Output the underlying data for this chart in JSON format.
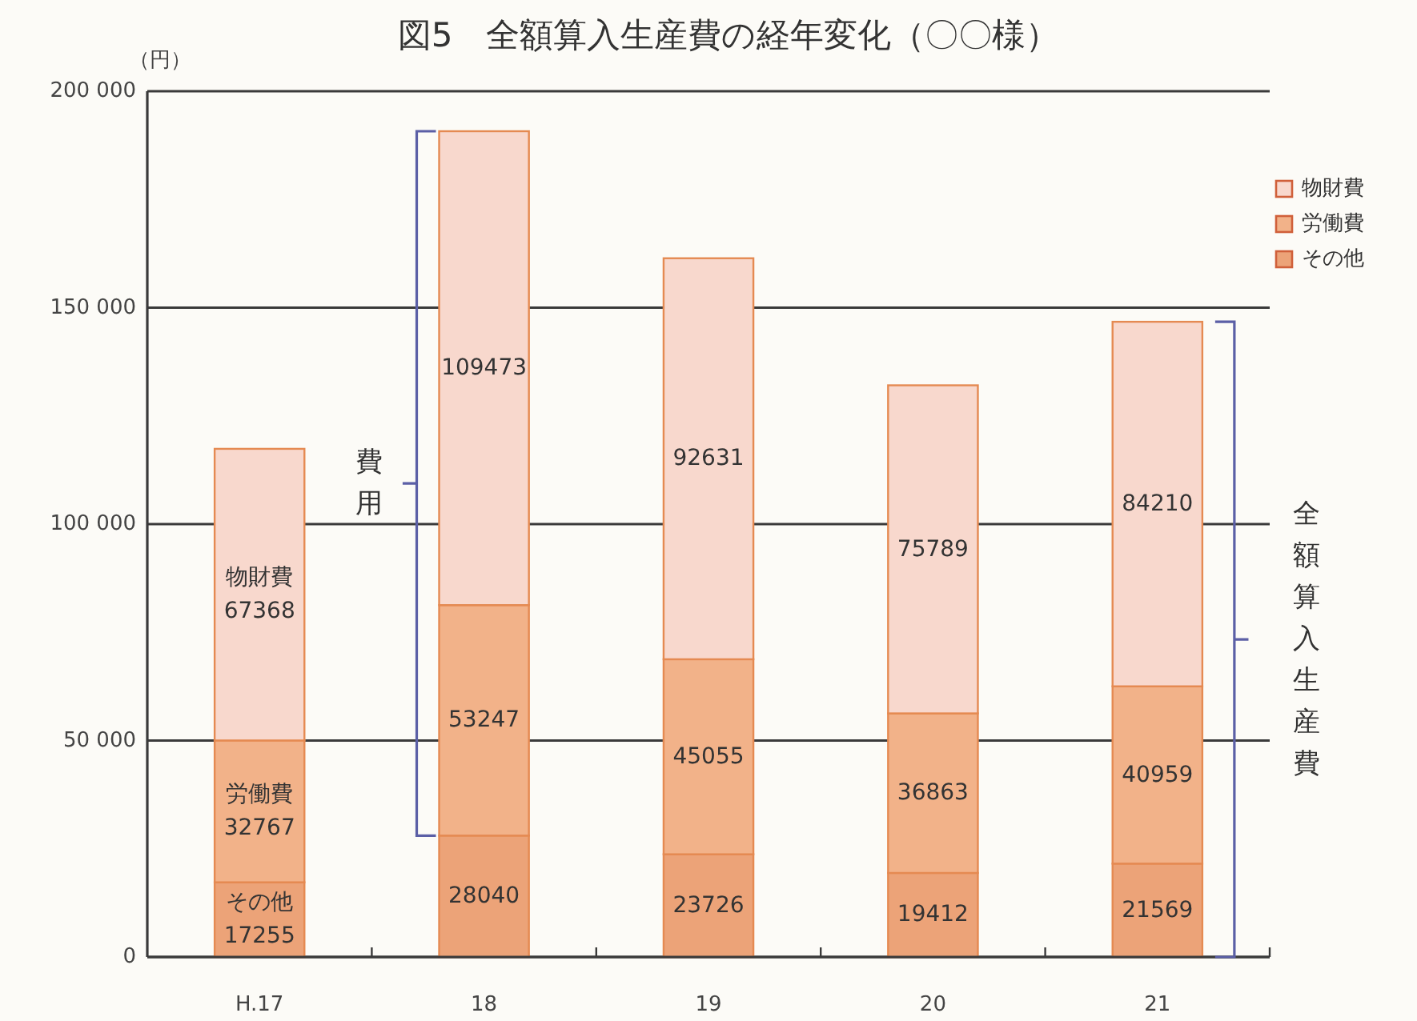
{
  "chart_data": {
    "type": "bar",
    "stacked": true,
    "title": "図5　全額算入生産費の経年変化（〇〇様）",
    "ylabel": "（円）",
    "categories": [
      "H.17",
      "18",
      "19",
      "20",
      "21"
    ],
    "series": [
      {
        "name": "その他",
        "color": "#eca378",
        "values": [
          17255,
          28040,
          23726,
          19412,
          21569
        ],
        "value_labels": [
          "その他 17255",
          "28040",
          "23726",
          "19412",
          "21569"
        ]
      },
      {
        "name": "労働費",
        "color": "#f2b289",
        "values": [
          32767,
          53247,
          45055,
          36863,
          40959
        ],
        "value_labels": [
          "労働費 32767",
          "53247",
          "45055",
          "36863",
          "40959"
        ]
      },
      {
        "name": "物財費",
        "color": "#f8d8cd",
        "values": [
          67368,
          109473,
          92631,
          75789,
          84210
        ],
        "value_labels": [
          "物財費 67368",
          "109473",
          "92631",
          "75789",
          "84210"
        ]
      }
    ],
    "ylim": [
      0,
      200000
    ],
    "yticks": [
      0,
      {
        "value": 50000,
        "label": "50 000"
      },
      {
        "value": 100000,
        "label": "100 000"
      },
      {
        "value": 150000,
        "label": "150 000"
      },
      {
        "value": 200000,
        "label": "200 000"
      }
    ],
    "grid": "y",
    "legend": "top right",
    "annotations": [
      "費用",
      "全額算入生産費"
    ]
  }
}
